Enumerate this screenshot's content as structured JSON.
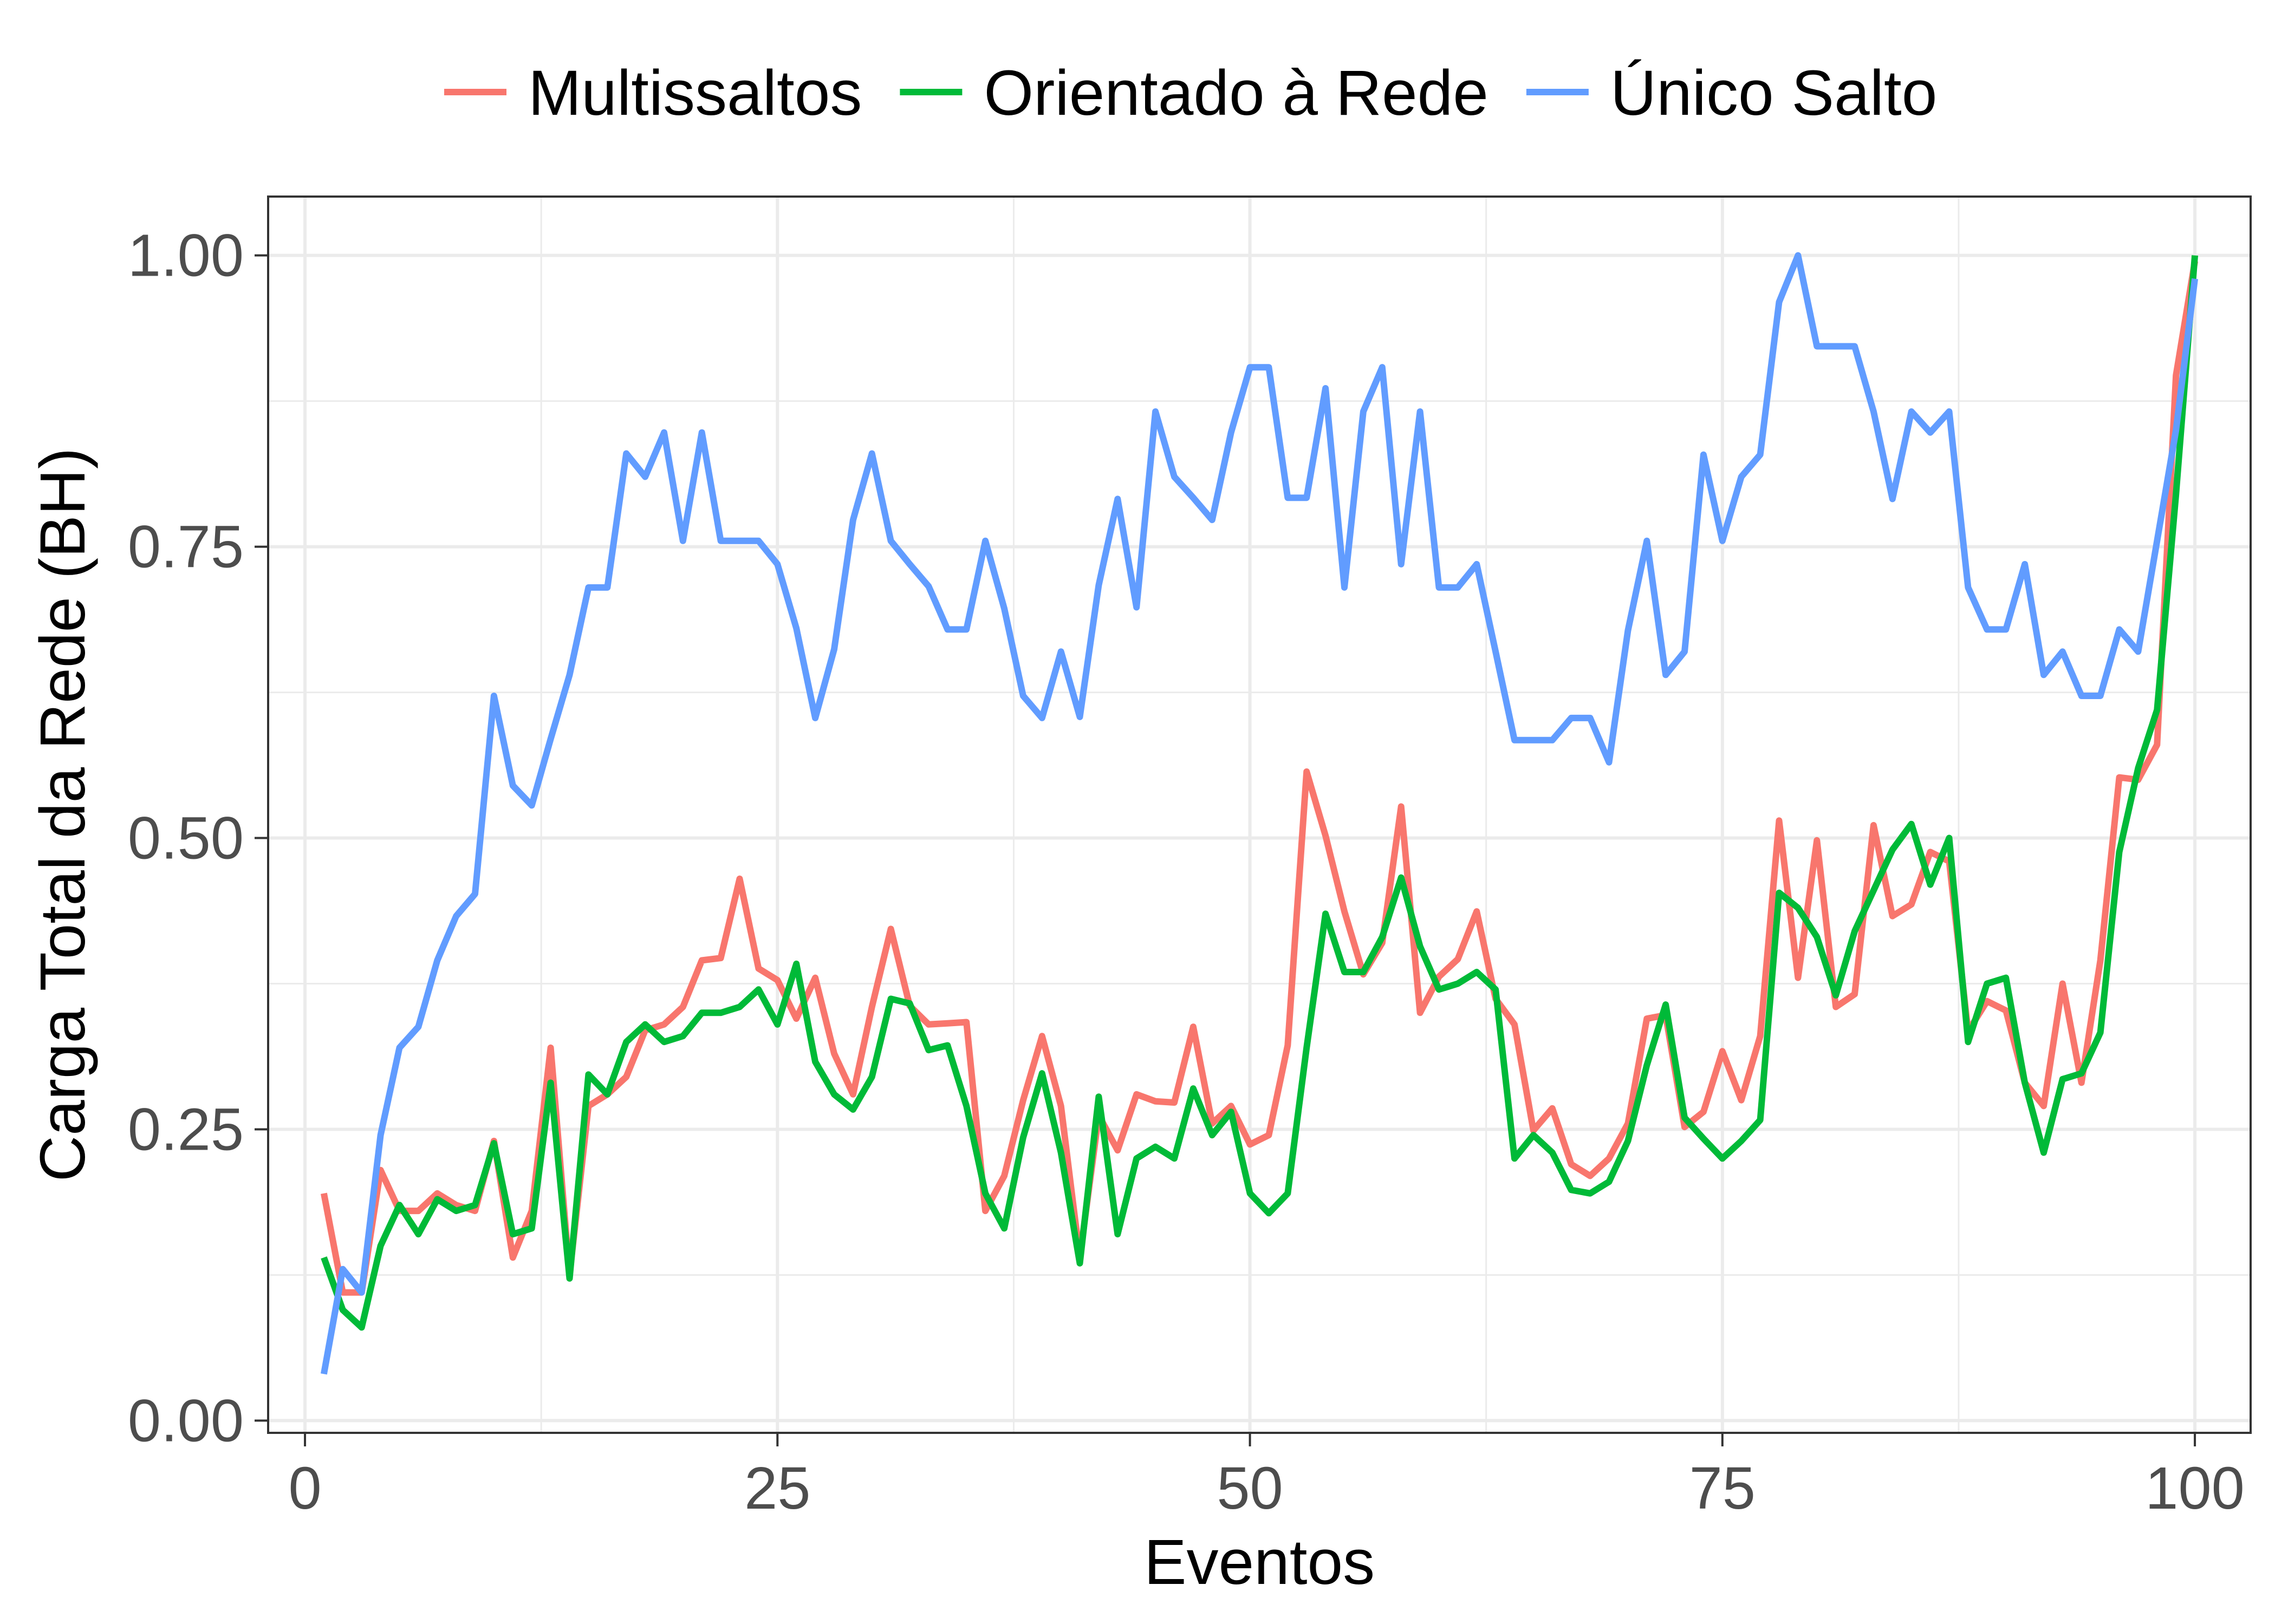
{
  "chart_data": {
    "type": "line",
    "title": "",
    "xlabel": "Eventos",
    "ylabel": "Carga Total da Rede (BH)",
    "xlim": [
      -1.95,
      102.95
    ],
    "ylim": [
      -0.0105,
      1.0505
    ],
    "x_ticks": [
      0,
      25,
      50,
      75,
      100
    ],
    "x_tick_labels": [
      "0",
      "25",
      "50",
      "75",
      "100"
    ],
    "y_ticks": [
      0,
      0.25,
      0.5,
      0.75,
      1.0
    ],
    "y_tick_labels": [
      "0.00",
      "0.25",
      "0.50",
      "0.75",
      "1.00"
    ],
    "x_minor_ticks": [
      12.5,
      37.5,
      62.5,
      87.5
    ],
    "y_minor_ticks": [
      0.125,
      0.375,
      0.625,
      0.875
    ],
    "grid": true,
    "legend_position": "top",
    "series": [
      {
        "name": "Multissaltos",
        "color": "#F8766D",
        "values": [
          0.195,
          0.11,
          0.11,
          0.215,
          0.18,
          0.18,
          0.195,
          0.185,
          0.18,
          0.24,
          0.14,
          0.18,
          0.32,
          0.125,
          0.27,
          0.28,
          0.295,
          0.335,
          0.34,
          0.355,
          0.395,
          0.397,
          0.465,
          0.388,
          0.378,
          0.345,
          0.38,
          0.315,
          0.28,
          0.355,
          0.422,
          0.356,
          0.34,
          0.341,
          0.342,
          0.18,
          0.21,
          0.275,
          0.33,
          0.27,
          0.14,
          0.262,
          0.232,
          0.28,
          0.274,
          0.273,
          0.338,
          0.255,
          0.27,
          0.237,
          0.245,
          0.322,
          0.557,
          0.502,
          0.437,
          0.383,
          0.41,
          0.527,
          0.35,
          0.381,
          0.396,
          0.437,
          0.362,
          0.34,
          0.249,
          0.268,
          0.22,
          0.21,
          0.225,
          0.255,
          0.345,
          0.348,
          0.252,
          0.265,
          0.317,
          0.275,
          0.33,
          0.515,
          0.38,
          0.498,
          0.355,
          0.366,
          0.511,
          0.433,
          0.443,
          0.488,
          0.48,
          0.334,
          0.36,
          0.352,
          0.29,
          0.27,
          0.375,
          0.29,
          0.395,
          0.552,
          0.55,
          0.58,
          0.897,
          0.995
        ]
      },
      {
        "name": "Orientado à Rede",
        "color": "#00BA38",
        "values": [
          0.14,
          0.095,
          0.08,
          0.15,
          0.185,
          0.16,
          0.19,
          0.18,
          0.185,
          0.238,
          0.16,
          0.165,
          0.29,
          0.122,
          0.297,
          0.28,
          0.325,
          0.34,
          0.325,
          0.33,
          0.35,
          0.35,
          0.355,
          0.37,
          0.34,
          0.392,
          0.308,
          0.28,
          0.267,
          0.295,
          0.362,
          0.358,
          0.318,
          0.322,
          0.27,
          0.195,
          0.165,
          0.243,
          0.298,
          0.23,
          0.135,
          0.278,
          0.16,
          0.225,
          0.235,
          0.225,
          0.285,
          0.245,
          0.265,
          0.195,
          0.178,
          0.195,
          0.32,
          0.435,
          0.385,
          0.385,
          0.415,
          0.466,
          0.407,
          0.37,
          0.375,
          0.385,
          0.37,
          0.225,
          0.245,
          0.23,
          0.198,
          0.195,
          0.205,
          0.24,
          0.305,
          0.357,
          0.26,
          0.242,
          0.225,
          0.24,
          0.258,
          0.453,
          0.44,
          0.415,
          0.365,
          0.42,
          0.455,
          0.49,
          0.512,
          0.46,
          0.5,
          0.325,
          0.375,
          0.38,
          0.29,
          0.23,
          0.293,
          0.298,
          0.333,
          0.488,
          0.56,
          0.61,
          0.795,
          1.0
        ]
      },
      {
        "name": "Único Salto",
        "color": "#619CFF",
        "values": [
          0.04,
          0.13,
          0.11,
          0.245,
          0.32,
          0.338,
          0.395,
          0.433,
          0.452,
          0.622,
          0.545,
          0.528,
          0.585,
          0.64,
          0.715,
          0.715,
          0.83,
          0.81,
          0.848,
          0.755,
          0.848,
          0.755,
          0.755,
          0.755,
          0.735,
          0.68,
          0.603,
          0.662,
          0.773,
          0.83,
          0.755,
          0.735,
          0.716,
          0.679,
          0.679,
          0.755,
          0.697,
          0.622,
          0.603,
          0.66,
          0.604,
          0.717,
          0.791,
          0.698,
          0.866,
          0.81,
          0.792,
          0.773,
          0.848,
          0.904,
          0.904,
          0.792,
          0.792,
          0.886,
          0.715,
          0.866,
          0.904,
          0.735,
          0.866,
          0.715,
          0.715,
          0.735,
          0.66,
          0.584,
          0.584,
          0.584,
          0.603,
          0.603,
          0.565,
          0.678,
          0.755,
          0.64,
          0.66,
          0.829,
          0.755,
          0.81,
          0.829,
          0.96,
          1.0,
          0.922,
          0.922,
          0.922,
          0.866,
          0.791,
          0.866,
          0.848,
          0.866,
          0.715,
          0.679,
          0.679,
          0.735,
          0.64,
          0.66,
          0.622,
          0.622,
          0.679,
          0.66,
          0.755,
          0.85,
          0.98
        ]
      }
    ]
  }
}
